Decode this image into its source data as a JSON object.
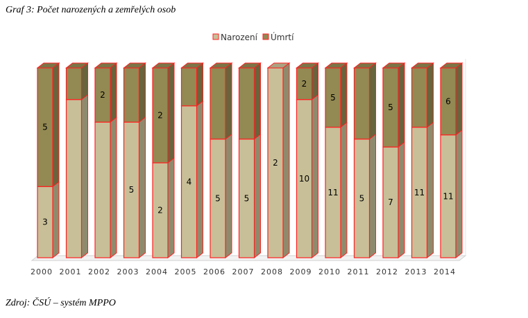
{
  "title": "Graf 3: Počet narozených a zemřelých osob",
  "source": "Zdroj: ČSÚ – systém MPPO",
  "colors": {
    "narozeni": "#c8bf98",
    "umrti": "#938953",
    "outline": "#ff2020",
    "axis": "#d0d0d0"
  },
  "chart_data": {
    "type": "bar",
    "stacked": true,
    "normalized": true,
    "categories": [
      "2000",
      "2001",
      "2002",
      "2003",
      "2004",
      "2005",
      "2006",
      "2007",
      "2008",
      "2009",
      "2010",
      "2011",
      "2012",
      "2013",
      "2014"
    ],
    "series": [
      {
        "name": "Narození",
        "values": [
          3,
          5,
          5,
          5,
          2,
          4,
          5,
          5,
          2,
          10,
          11,
          5,
          7,
          11,
          11
        ],
        "labels": [
          "3",
          "",
          "",
          "5",
          "2",
          "4",
          "5",
          "5",
          "2",
          "10",
          "11",
          "5",
          "7",
          "11",
          "11"
        ]
      },
      {
        "name": "Úmrtí",
        "values": [
          5,
          1,
          2,
          2,
          2,
          1,
          3,
          3,
          0,
          2,
          5,
          3,
          5,
          5,
          6
        ],
        "labels": [
          "5",
          "",
          "2",
          "",
          "2",
          "",
          "",
          "",
          "",
          "2",
          "5",
          "",
          "5",
          "",
          "6"
        ]
      }
    ],
    "legend": "top-center",
    "grid": false
  }
}
